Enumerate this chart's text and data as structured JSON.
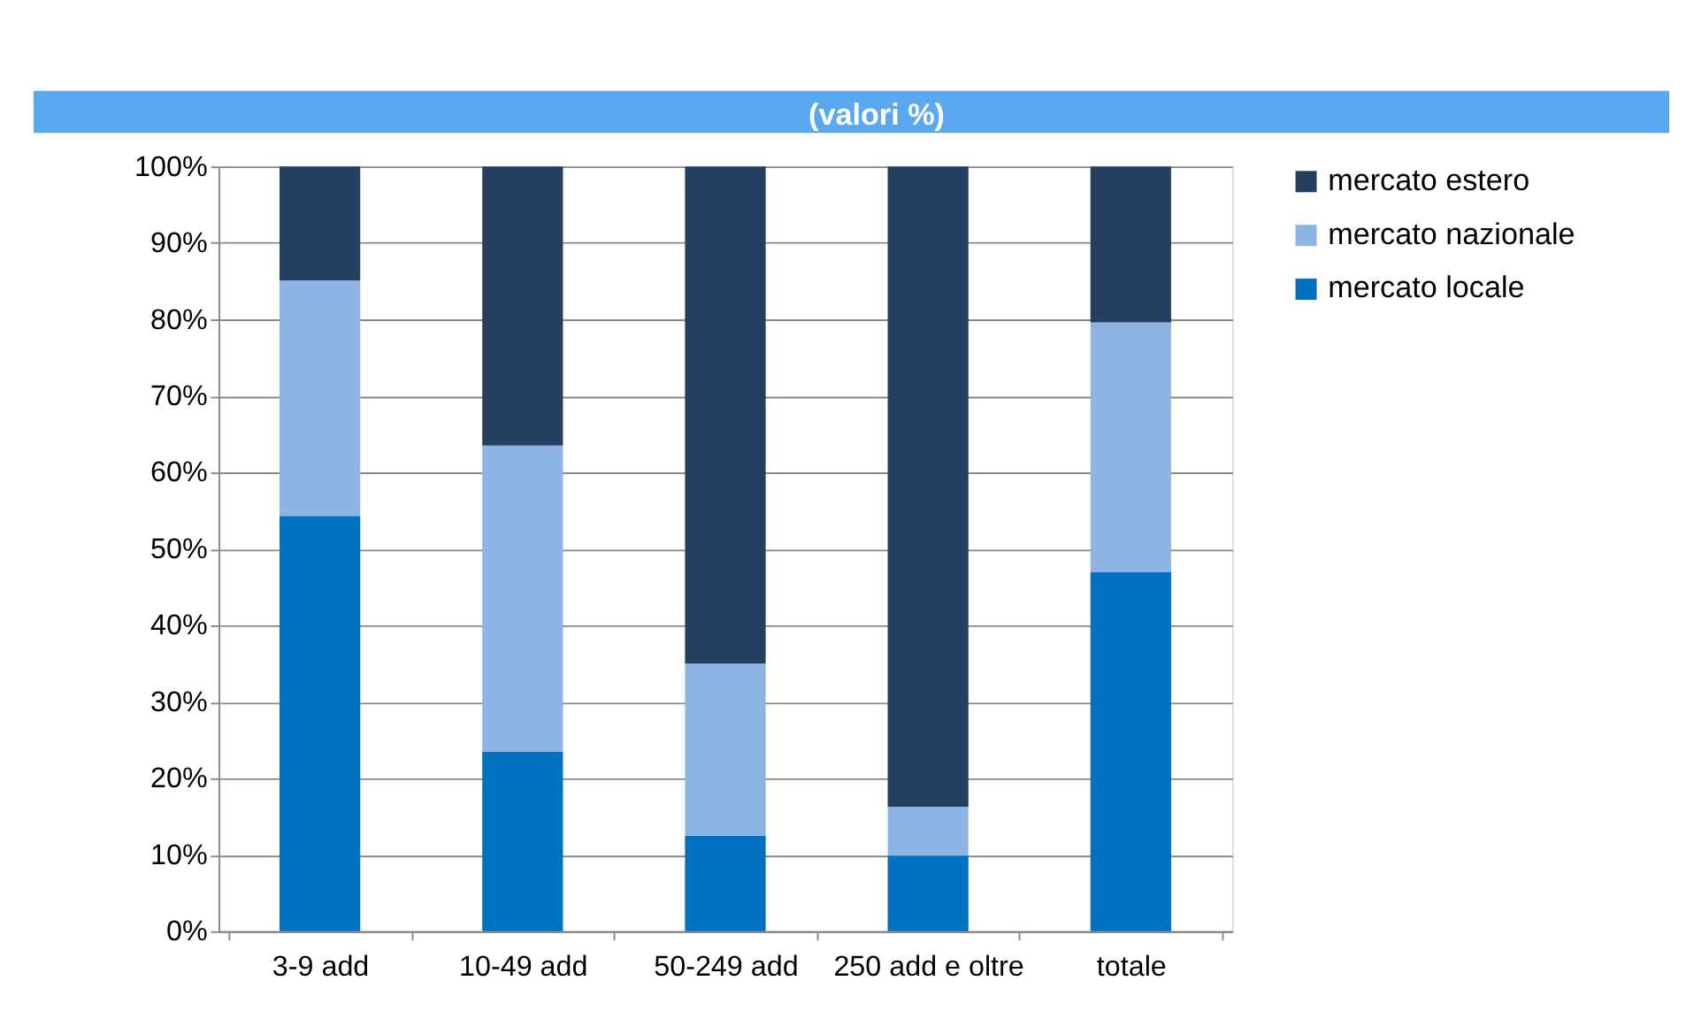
{
  "chart_data": {
    "type": "bar",
    "title": "(valori %)",
    "stacked": true,
    "categories": [
      "3-9 add",
      "10-49 add",
      "50-249 add",
      "250 add e oltre",
      "totale"
    ],
    "series": [
      {
        "name": "mercato locale",
        "color": "#0070c0",
        "values": [
          54.3,
          23.5,
          12.5,
          9.9,
          47.0
        ]
      },
      {
        "name": "mercato nazionale",
        "color": "#8eb4e3",
        "values": [
          30.8,
          40.0,
          22.5,
          6.4,
          32.6
        ]
      },
      {
        "name": "mercato estero",
        "color": "#253f60",
        "values": [
          14.9,
          36.5,
          65.0,
          83.7,
          20.4
        ]
      }
    ],
    "ylim": [
      0,
      100
    ],
    "yticks": [
      {
        "value": 0,
        "label": "0%"
      },
      {
        "value": 10,
        "label": "10%"
      },
      {
        "value": 20,
        "label": "20%"
      },
      {
        "value": 30,
        "label": "30%"
      },
      {
        "value": 40,
        "label": "40%"
      },
      {
        "value": 50,
        "label": "50%"
      },
      {
        "value": 60,
        "label": "60%"
      },
      {
        "value": 70,
        "label": "70%"
      },
      {
        "value": 80,
        "label": "80%"
      },
      {
        "value": 90,
        "label": "90%"
      },
      {
        "value": 100,
        "label": "100%"
      }
    ],
    "grid": "y",
    "legend": "right"
  }
}
